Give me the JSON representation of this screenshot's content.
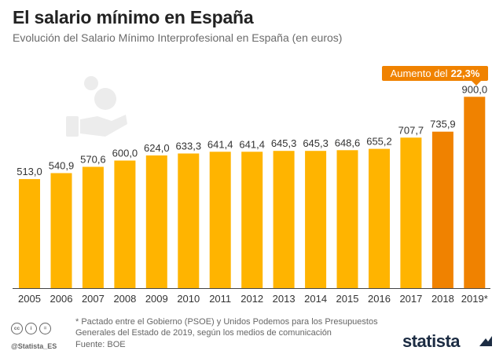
{
  "header": {
    "title": "El salario mínimo en España",
    "subtitle": "Evolución del Salario Mínimo Interprofesional en España (en euros)"
  },
  "callout": {
    "prefix": "Aumento del",
    "value": "22,3%"
  },
  "chart_data": {
    "type": "bar",
    "title": "El salario mínimo en España",
    "subtitle": "Evolución del Salario Mínimo Interprofesional en España (en euros)",
    "xlabel": "",
    "ylabel": "",
    "ylim": [
      0,
      960
    ],
    "categories": [
      "2005",
      "2006",
      "2007",
      "2008",
      "2009",
      "2010",
      "2011",
      "2012",
      "2013",
      "2014",
      "2015",
      "2016",
      "2017",
      "2018",
      "2019*"
    ],
    "values": [
      513.0,
      540.9,
      570.6,
      600.0,
      624.0,
      633.3,
      641.4,
      641.4,
      645.3,
      645.3,
      648.6,
      655.2,
      707.7,
      735.9,
      900.0
    ],
    "labels": [
      "513,0",
      "540,9",
      "570,6",
      "600,0",
      "624,0",
      "633,3",
      "641,4",
      "641,4",
      "645,3",
      "645,3",
      "648,6",
      "655,2",
      "707,7",
      "735,9",
      "900,0"
    ],
    "highlight_categories": [
      "2018",
      "2019*"
    ],
    "colors": {
      "default": "#ffb400",
      "highlight": "#f08200",
      "axis": "#444444"
    },
    "grid": false,
    "legend": "none"
  },
  "footer": {
    "footnote": "* Pactado entre el Gobierno (PSOE) y Unidos Podemos para los Presupuestos Generales del Estado de 2019, según los medios de comunicación",
    "source": "Fuente: BOE",
    "handle": "@Statista_ES",
    "brand": "statista",
    "cc_icons": [
      "cc",
      "i",
      "="
    ]
  }
}
